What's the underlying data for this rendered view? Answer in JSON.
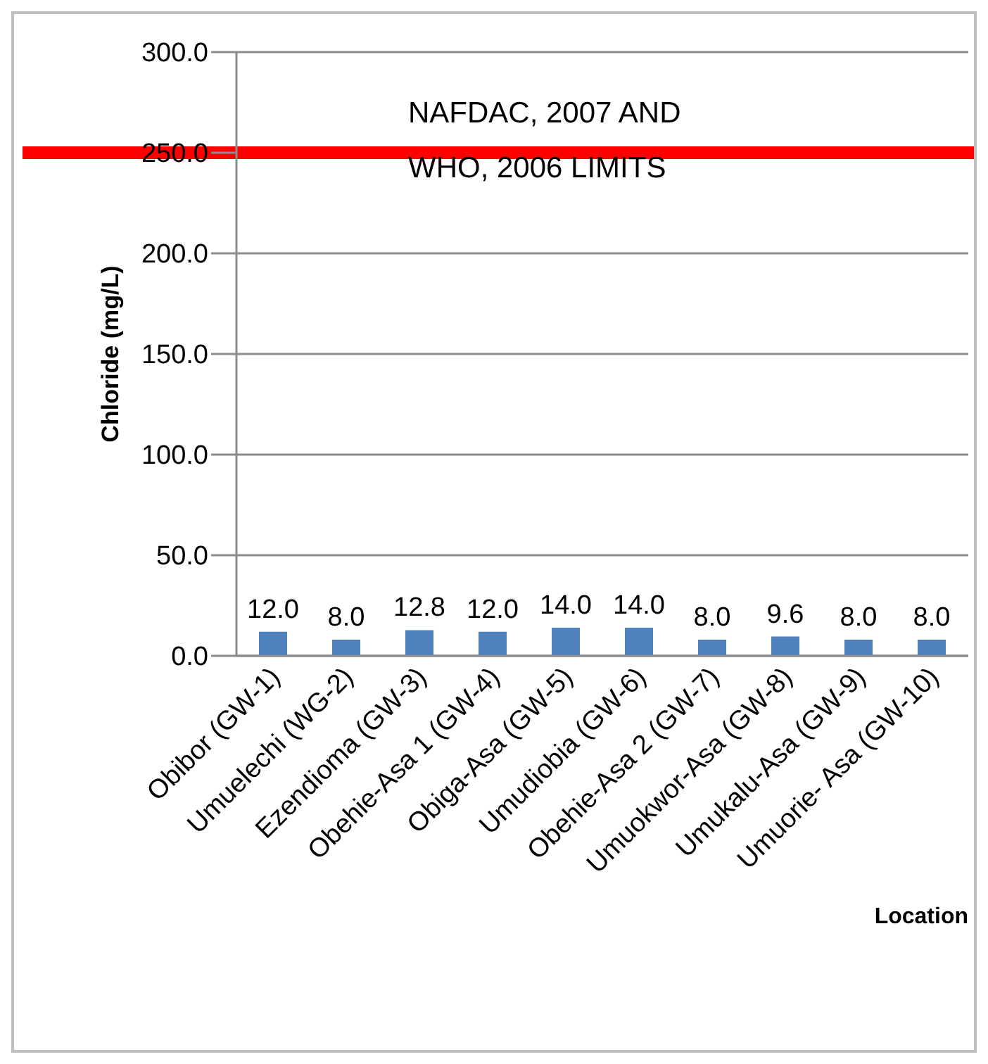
{
  "chart_data": {
    "type": "bar",
    "xlabel": "Location",
    "ylabel": "Chloride (mg/L)",
    "categories": [
      "Obibor (GW-1)",
      "Umuelechi (WG-2)",
      "Ezendioma (GW-3)",
      "Obehie-Asa 1  (GW-4)",
      "Obiga-Asa (GW-5)",
      "Umudiobia  (GW-6)",
      "Obehie-Asa 2 (GW-7)",
      "Umuokwor-Asa  (GW-8)",
      "Umukalu-Asa  (GW-9)",
      "Umuorie- Asa (GW-10)"
    ],
    "values": [
      12.0,
      8.0,
      12.8,
      12.0,
      14.0,
      14.0,
      8.0,
      9.6,
      8.0,
      8.0
    ],
    "value_labels": [
      "12.0",
      "8.0",
      "12.8",
      "12.0",
      "14.0",
      "14.0",
      "8.0",
      "9.6",
      "8.0",
      "8.0"
    ],
    "color": "#4f81bd",
    "ylim": [
      0,
      300
    ],
    "yticks": [
      {
        "value": 0,
        "label": "0.0"
      },
      {
        "value": 50,
        "label": "50.0"
      },
      {
        "value": 100,
        "label": "100.0"
      },
      {
        "value": 150,
        "label": "150.0"
      },
      {
        "value": 200,
        "label": "200.0"
      },
      {
        "value": 250,
        "label": "250.0"
      },
      {
        "value": 300,
        "label": "300.0"
      }
    ],
    "grid": "y",
    "legend": false,
    "ref_lines": [
      {
        "axis": "y",
        "value": 250,
        "label": "NAFDAC, 2007 AND WHO, 2006 LIMITS",
        "color": "#ff0000"
      }
    ]
  }
}
